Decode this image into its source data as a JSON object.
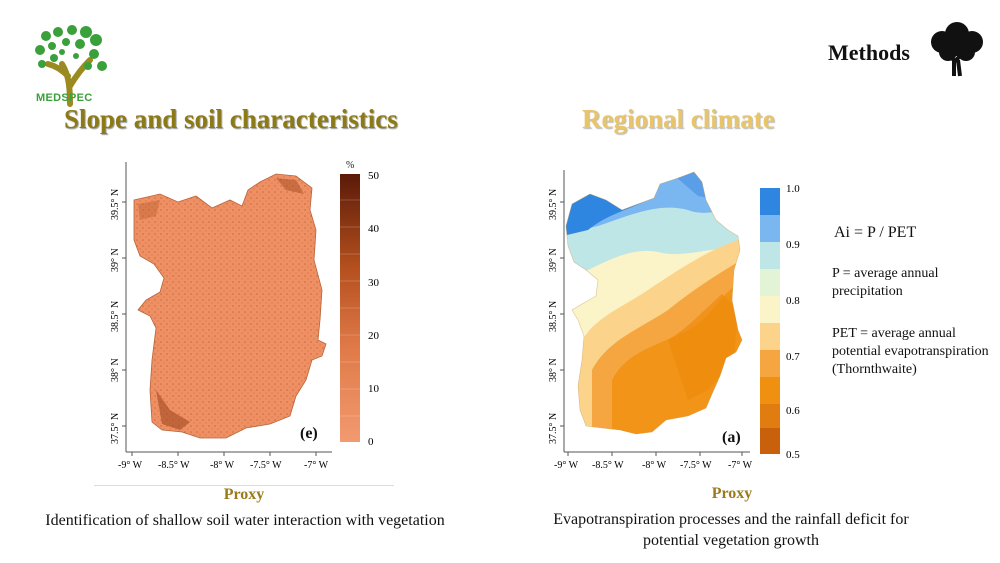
{
  "brand": {
    "name": "MEDSPEC",
    "logo_icon": "tree-logo-icon"
  },
  "header": {
    "section_label": "Methods",
    "section_icon": "tree-icon"
  },
  "panels": [
    {
      "title": "Slope and soil characteristics",
      "map_label": "(e)",
      "colorbar_unit": "%",
      "colorbar_ticks": [
        "50",
        "40",
        "30",
        "20",
        "10",
        "0"
      ],
      "y_ticks": [
        "39.5° N",
        "39° N",
        "38.5° N",
        "38° N",
        "37.5° N"
      ],
      "x_ticks": [
        "-9° W",
        "-8.5° W",
        "-8° W",
        "-7.5° W",
        "-7° W"
      ],
      "proxy_label": "Proxy",
      "description": "Identification of shallow soil water interaction with vegetation"
    },
    {
      "title": "Regional climate",
      "map_label": "(a)",
      "colorbar_ticks": [
        "1.0",
        "0.9",
        "0.8",
        "0.7",
        "0.6",
        "0.5"
      ],
      "y_ticks": [
        "39.5° N",
        "39° N",
        "38.5° N",
        "38° N",
        "37.5° N"
      ],
      "x_ticks": [
        "-9° W",
        "-8.5° W",
        "-8° W",
        "-7.5° W",
        "-7° W"
      ],
      "proxy_label": "Proxy",
      "description": "Evapotranspiration processes and the rainfall deficit for potential vegetation growth"
    }
  ],
  "formula": {
    "main": "Ai = P / PET",
    "p_def": "P = average annual precipitation",
    "pet_def": "PET = average annual potential evapotranspiration (Thornthwaite)"
  },
  "colors": {
    "title_left": "#8c7a16",
    "title_right": "#e8c46a",
    "proxy": "#9a7b1a",
    "slope_low": "#f29a70",
    "slope_high": "#5a1a08",
    "aridity_scale": [
      "#2f86e0",
      "#7ab6ef",
      "#bfe6e6",
      "#fbf4c8",
      "#fbd38a",
      "#f5a640",
      "#f09010",
      "#d06a10"
    ]
  }
}
